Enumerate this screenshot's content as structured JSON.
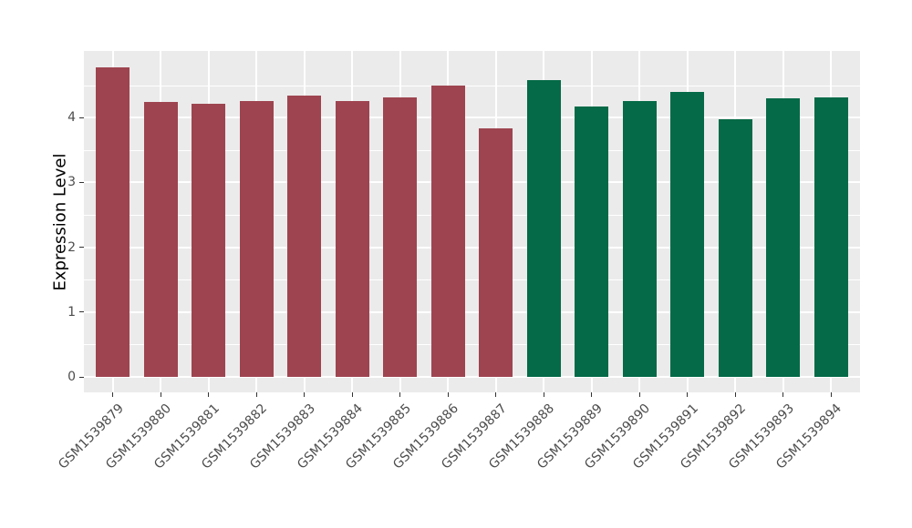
{
  "chart_data": {
    "type": "bar",
    "title": "",
    "xlabel": "",
    "ylabel": "Expression Level",
    "categories": [
      "GSM1539879",
      "GSM1539880",
      "GSM1539881",
      "GSM1539882",
      "GSM1539883",
      "GSM1539884",
      "GSM1539885",
      "GSM1539886",
      "GSM1539887",
      "GSM1539888",
      "GSM1539889",
      "GSM1539890",
      "GSM1539891",
      "GSM1539892",
      "GSM1539893",
      "GSM1539894"
    ],
    "values": [
      4.78,
      4.24,
      4.22,
      4.26,
      4.34,
      4.26,
      4.31,
      4.49,
      3.83,
      4.58,
      4.17,
      4.26,
      4.39,
      3.98,
      4.3,
      4.31
    ],
    "bar_colors": [
      "#9E4450",
      "#9E4450",
      "#9E4450",
      "#9E4450",
      "#9E4450",
      "#9E4450",
      "#9E4450",
      "#9E4450",
      "#9E4450",
      "#046A47",
      "#046A47",
      "#046A47",
      "#046A47",
      "#046A47",
      "#046A47",
      "#046A47"
    ],
    "group_colors": {
      "left_group": "#9E4450",
      "right_group": "#046A47"
    },
    "yticks": [
      0,
      1,
      2,
      3,
      4
    ],
    "ytick_labels": [
      "0",
      "1",
      "2",
      "3",
      "4"
    ],
    "minor_gridlines": [
      0.5,
      1.5,
      2.5,
      3.5,
      4.5
    ],
    "ylim": [
      -0.25,
      5.03
    ],
    "x_tick_rotation": -45,
    "grid": true,
    "legend_position": "none",
    "panel_background": "#EBEBEB",
    "grid_color": "#FFFFFF",
    "tick_label_color": "#4D4D4D",
    "axis_title_color": "#000000"
  }
}
